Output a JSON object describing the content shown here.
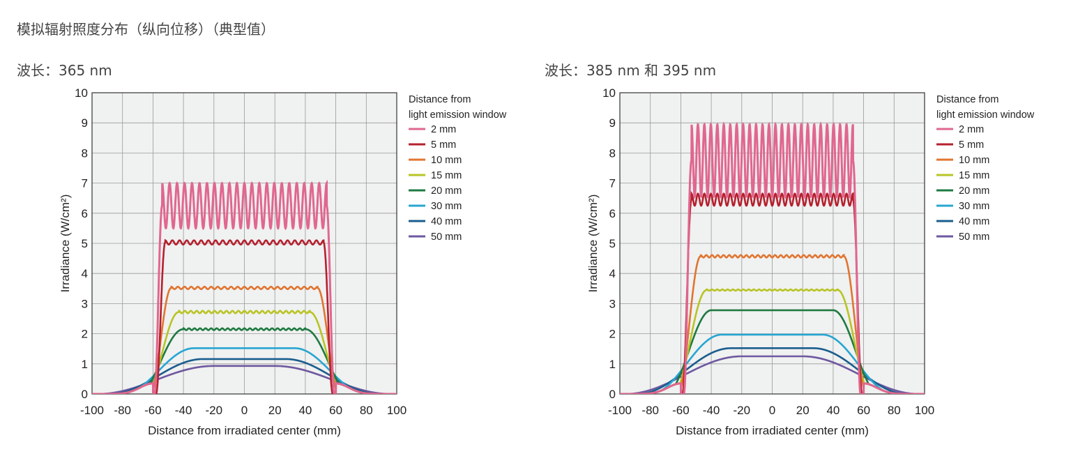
{
  "page": {
    "title": "模拟辐射照度分布（纵向位移）（典型值）"
  },
  "chart_data": [
    {
      "type": "line",
      "title": "波长：365 nm",
      "xlabel": "Distance from irradiated center (mm)",
      "ylabel": "Irradiance (W/cm²)",
      "xlim": [
        -100,
        100
      ],
      "ylim": [
        0,
        10
      ],
      "xticks": [
        "-100",
        "-80",
        "-60",
        "-40",
        "-20",
        "0",
        "20",
        "40",
        "60",
        "80",
        "100"
      ],
      "yticks": [
        "0",
        "1",
        "2",
        "3",
        "4",
        "5",
        "6",
        "7",
        "8",
        "9",
        "10"
      ],
      "grid": true,
      "legend_title": [
        "Distance from",
        "light emission window"
      ],
      "legend_position": "right",
      "series": [
        {
          "name": "2 mm",
          "color": "#e0678f",
          "plateau": 6.25,
          "ripple": 0.75,
          "ripples": 22,
          "flat_half_width_mm": 54,
          "zero_at_mm": 59
        },
        {
          "name": "5 mm",
          "color": "#b5202e",
          "plateau": 5.03,
          "ripple": 0.07,
          "ripples": 22,
          "flat_half_width_mm": 52,
          "zero_at_mm": 58
        },
        {
          "name": "10 mm",
          "color": "#e07530",
          "plateau": 3.52,
          "ripple": 0.04,
          "ripples": 22,
          "flat_half_width_mm": 48,
          "zero_at_mm": 62
        },
        {
          "name": "15 mm",
          "color": "#b8c424",
          "plateau": 2.72,
          "ripple": 0.04,
          "ripples": 22,
          "flat_half_width_mm": 43,
          "zero_at_mm": 65
        },
        {
          "name": "20 mm",
          "color": "#1e7a40",
          "plateau": 2.15,
          "ripple": 0.03,
          "ripples": 22,
          "flat_half_width_mm": 40,
          "zero_at_mm": 70
        },
        {
          "name": "30 mm",
          "color": "#27a6d2",
          "plateau": 1.52,
          "ripple": 0,
          "ripples": 0,
          "flat_half_width_mm": 33,
          "zero_at_mm": 80
        },
        {
          "name": "40 mm",
          "color": "#1a5e8e",
          "plateau": 1.16,
          "ripple": 0,
          "ripples": 0,
          "flat_half_width_mm": 27,
          "zero_at_mm": 88
        },
        {
          "name": "50 mm",
          "color": "#6e58a0",
          "plateau": 0.93,
          "ripple": 0,
          "ripples": 0,
          "flat_half_width_mm": 20,
          "zero_at_mm": 96
        }
      ]
    },
    {
      "type": "line",
      "title": "波长：385 nm 和 395 nm",
      "xlabel": "Distance from irradiated center (mm)",
      "ylabel": "Irradiance (W/cm²)",
      "xlim": [
        -100,
        100
      ],
      "ylim": [
        0,
        10
      ],
      "xticks": [
        "-100",
        "-80",
        "-60",
        "-40",
        "-20",
        "0",
        "20",
        "40",
        "60",
        "80",
        "100"
      ],
      "yticks": [
        "0",
        "1",
        "2",
        "3",
        "4",
        "5",
        "6",
        "7",
        "8",
        "9",
        "10"
      ],
      "grid": true,
      "legend_title": [
        "Distance from",
        "light emission window"
      ],
      "legend_position": "right",
      "series": [
        {
          "name": "2 mm",
          "color": "#e0678f",
          "plateau": 7.75,
          "ripple": 1.2,
          "ripples": 25,
          "flat_half_width_mm": 53,
          "zero_at_mm": 58
        },
        {
          "name": "5 mm",
          "color": "#b5202e",
          "plateau": 6.45,
          "ripple": 0.2,
          "ripples": 25,
          "flat_half_width_mm": 53,
          "zero_at_mm": 59
        },
        {
          "name": "10 mm",
          "color": "#e07530",
          "plateau": 4.57,
          "ripple": 0.04,
          "ripples": 25,
          "flat_half_width_mm": 47,
          "zero_at_mm": 62
        },
        {
          "name": "15 mm",
          "color": "#b8c424",
          "plateau": 3.45,
          "ripple": 0.02,
          "ripples": 25,
          "flat_half_width_mm": 43,
          "zero_at_mm": 65
        },
        {
          "name": "20 mm",
          "color": "#1e7a40",
          "plateau": 2.78,
          "ripple": 0,
          "ripples": 0,
          "flat_half_width_mm": 40,
          "zero_at_mm": 70
        },
        {
          "name": "30 mm",
          "color": "#27a6d2",
          "plateau": 1.97,
          "ripple": 0,
          "ripples": 0,
          "flat_half_width_mm": 33,
          "zero_at_mm": 80
        },
        {
          "name": "40 mm",
          "color": "#1a5e8e",
          "plateau": 1.52,
          "ripple": 0,
          "ripples": 0,
          "flat_half_width_mm": 27,
          "zero_at_mm": 88
        },
        {
          "name": "50 mm",
          "color": "#6e58a0",
          "plateau": 1.25,
          "ripple": 0,
          "ripples": 0,
          "flat_half_width_mm": 20,
          "zero_at_mm": 96
        }
      ]
    }
  ]
}
